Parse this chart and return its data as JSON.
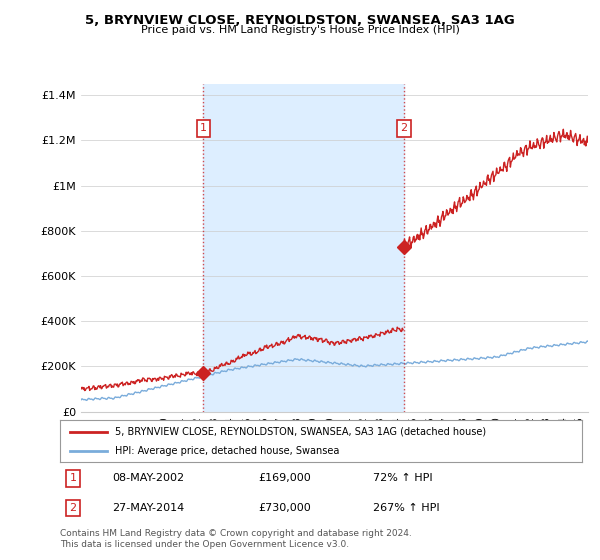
{
  "title": "5, BRYNVIEW CLOSE, REYNOLDSTON, SWANSEA, SA3 1AG",
  "subtitle": "Price paid vs. HM Land Registry's House Price Index (HPI)",
  "ylabel_ticks": [
    "£0",
    "£200K",
    "£400K",
    "£600K",
    "£800K",
    "£1M",
    "£1.2M",
    "£1.4M"
  ],
  "ylim": [
    0,
    1450000
  ],
  "xlim_start": 1995,
  "xlim_end": 2025.5,
  "hpi_color": "#7aacdb",
  "price_color": "#cc2222",
  "shade_color": "#ddeeff",
  "sale1_x": 2002.36,
  "sale1_y": 169000,
  "sale2_x": 2014.41,
  "sale2_y": 730000,
  "legend_line1": "5, BRYNVIEW CLOSE, REYNOLDSTON, SWANSEA, SA3 1AG (detached house)",
  "legend_line2": "HPI: Average price, detached house, Swansea",
  "annotation1_label": "1",
  "annotation1_date": "08-MAY-2002",
  "annotation1_price": "£169,000",
  "annotation1_hpi": "72% ↑ HPI",
  "annotation2_label": "2",
  "annotation2_date": "27-MAY-2014",
  "annotation2_price": "£730,000",
  "annotation2_hpi": "267% ↑ HPI",
  "footer": "Contains HM Land Registry data © Crown copyright and database right 2024.\nThis data is licensed under the Open Government Licence v3.0.",
  "background_color": "#ffffff",
  "grid_color": "#cccccc"
}
